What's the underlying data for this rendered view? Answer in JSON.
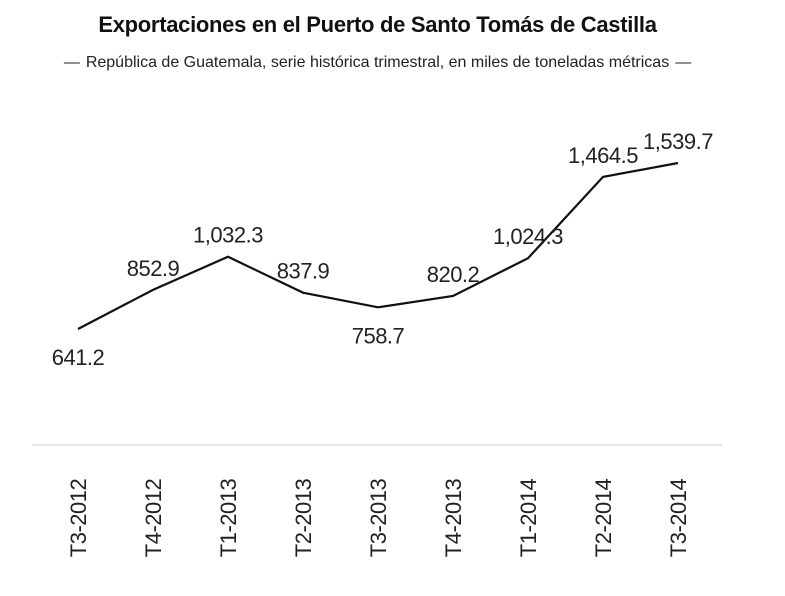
{
  "chart_data": {
    "type": "line",
    "title": "Exportaciones en el Puerto de Santo Tomás de Castilla",
    "subtitle": "República de Guatemala, serie histórica trimestral, en miles de toneladas métricas",
    "subtitle_dash": "—",
    "categories": [
      "T3-2012",
      "T4-2012",
      "T1-2013",
      "T2-2013",
      "T3-2013",
      "T4-2013",
      "T1-2014",
      "T2-2014",
      "T3-2014"
    ],
    "values": [
      641.2,
      852.9,
      1032.3,
      837.9,
      758.7,
      820.2,
      1024.3,
      1464.5,
      1539.7
    ],
    "value_labels": [
      "641.2",
      "852.9",
      "1,032.3",
      "837.9",
      "758.7",
      "820.2",
      "1,024.3",
      "1,464.5",
      "1,539.7"
    ],
    "label_positions": [
      "below",
      "above",
      "above",
      "above",
      "below",
      "above",
      "above",
      "above",
      "above"
    ],
    "xlabel": "",
    "ylabel": "",
    "grid": false,
    "line_color": "#111111",
    "axis_color": "#cccccc"
  }
}
